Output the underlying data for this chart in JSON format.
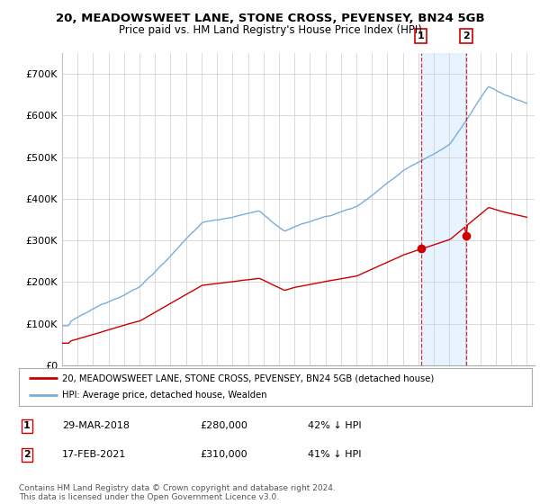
{
  "title1": "20, MEADOWSWEET LANE, STONE CROSS, PEVENSEY, BN24 5GB",
  "title2": "Price paid vs. HM Land Registry's House Price Index (HPI)",
  "legend_line1": "20, MEADOWSWEET LANE, STONE CROSS, PEVENSEY, BN24 5GB (detached house)",
  "legend_line2": "HPI: Average price, detached house, Wealden",
  "footnote": "Contains HM Land Registry data © Crown copyright and database right 2024.\nThis data is licensed under the Open Government Licence v3.0.",
  "hpi_color": "#7aacdb",
  "price_color": "#cc0000",
  "shade_color": "#ddeeff",
  "ylim": [
    0,
    750000
  ],
  "yticks": [
    0,
    100000,
    200000,
    300000,
    400000,
    500000,
    600000,
    700000
  ],
  "ytick_labels": [
    "£0",
    "£100K",
    "£200K",
    "£300K",
    "£400K",
    "£500K",
    "£600K",
    "£700K"
  ],
  "background_color": "#ffffff",
  "t1_year": 2018.21,
  "t2_year": 2021.12,
  "t1_prop_val": 280000,
  "t2_prop_val": 310000,
  "grid_color": "#cccccc"
}
